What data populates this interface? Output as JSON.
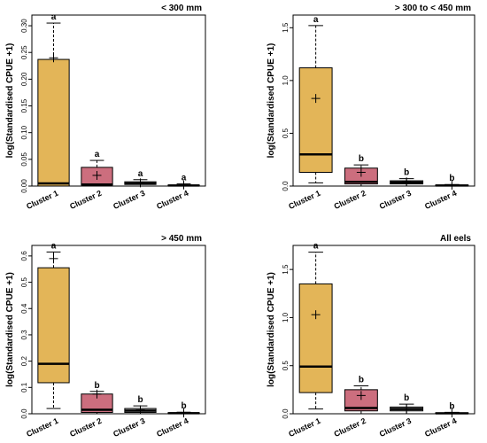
{
  "chart_data": [
    {
      "type": "box",
      "title": "< 300 mm",
      "ylabel": "log(Standardised CPUE +1)",
      "xlabel": "",
      "categories": [
        "Cluster 1",
        "Cluster 2",
        "Cluster 3",
        "Cluster 4"
      ],
      "ylim": [
        0,
        0.32
      ],
      "yticks": [
        "0.00",
        "0.05",
        "0.10",
        "0.15",
        "0.20",
        "0.25",
        "0.30"
      ],
      "boxes": [
        {
          "whisker_low": 0.0,
          "q1": 0.0,
          "median": 0.005,
          "q3": 0.237,
          "whisker_high": 0.305,
          "mean": 0.24,
          "letter": "a"
        },
        {
          "whisker_low": 0.0,
          "q1": 0.002,
          "median": 0.003,
          "q3": 0.035,
          "whisker_high": 0.048,
          "mean": 0.02,
          "letter": "a"
        },
        {
          "whisker_low": 0.0,
          "q1": 0.003,
          "median": 0.005,
          "q3": 0.008,
          "whisker_high": 0.012,
          "mean": 0.006,
          "letter": "a"
        },
        {
          "whisker_low": 0.0,
          "q1": 0.0,
          "median": 0.001,
          "q3": 0.002,
          "whisker_high": 0.004,
          "mean": 0.002,
          "letter": "a"
        }
      ],
      "colors": [
        "#e3b558",
        "#cc6e7e",
        "#b7b7b7",
        "#b7b7b7"
      ]
    },
    {
      "type": "box",
      "title": "> 300 to < 450 mm",
      "ylabel": "log(Standardised CPUE +1)",
      "xlabel": "",
      "categories": [
        "Cluster 1",
        "Cluster 2",
        "Cluster 3",
        "Cluster 4"
      ],
      "ylim": [
        0,
        1.62
      ],
      "yticks": [
        "0.0",
        "0.5",
        "1.0",
        "1.5"
      ],
      "boxes": [
        {
          "whisker_low": 0.03,
          "q1": 0.13,
          "median": 0.3,
          "q3": 1.12,
          "whisker_high": 1.52,
          "mean": 0.83,
          "letter": "a"
        },
        {
          "whisker_low": 0.0,
          "q1": 0.02,
          "median": 0.04,
          "q3": 0.17,
          "whisker_high": 0.2,
          "mean": 0.13,
          "letter": "b"
        },
        {
          "whisker_low": 0.0,
          "q1": 0.02,
          "median": 0.035,
          "q3": 0.05,
          "whisker_high": 0.07,
          "mean": 0.04,
          "letter": "b"
        },
        {
          "whisker_low": 0.0,
          "q1": 0.0,
          "median": 0.005,
          "q3": 0.01,
          "whisker_high": 0.015,
          "mean": 0.008,
          "letter": "b"
        }
      ],
      "colors": [
        "#e3b558",
        "#cc6e7e",
        "#b7b7b7",
        "#b7b7b7"
      ]
    },
    {
      "type": "box",
      "title": "> 450 mm",
      "ylabel": "log(Standardised CPUE +1)",
      "xlabel": "",
      "categories": [
        "Cluster 1",
        "Cluster 2",
        "Cluster 3",
        "Cluster 4"
      ],
      "ylim": [
        0,
        0.64
      ],
      "yticks": [
        "0.0",
        "0.1",
        "0.2",
        "0.3",
        "0.4",
        "0.5",
        "0.6"
      ],
      "boxes": [
        {
          "whisker_low": 0.02,
          "q1": 0.118,
          "median": 0.19,
          "q3": 0.555,
          "whisker_high": 0.615,
          "mean": 0.59,
          "letter": "a"
        },
        {
          "whisker_low": 0.0,
          "q1": 0.005,
          "median": 0.015,
          "q3": 0.075,
          "whisker_high": 0.085,
          "mean": 0.075,
          "letter": "b"
        },
        {
          "whisker_low": 0.0,
          "q1": 0.005,
          "median": 0.012,
          "q3": 0.02,
          "whisker_high": 0.03,
          "mean": 0.015,
          "letter": "b"
        },
        {
          "whisker_low": 0.0,
          "q1": 0.0,
          "median": 0.002,
          "q3": 0.004,
          "whisker_high": 0.006,
          "mean": 0.003,
          "letter": "b"
        }
      ],
      "colors": [
        "#e3b558",
        "#cc6e7e",
        "#b7b7b7",
        "#b7b7b7"
      ]
    },
    {
      "type": "box",
      "title": "All eels",
      "ylabel": "log(Standardised CPUE +1)",
      "xlabel": "",
      "categories": [
        "Cluster 1",
        "Cluster 2",
        "Cluster 3",
        "Cluster 4"
      ],
      "ylim": [
        0,
        1.75
      ],
      "yticks": [
        "0.0",
        "0.5",
        "1.0",
        "1.5"
      ],
      "boxes": [
        {
          "whisker_low": 0.05,
          "q1": 0.22,
          "median": 0.49,
          "q3": 1.35,
          "whisker_high": 1.68,
          "mean": 1.03,
          "letter": "a"
        },
        {
          "whisker_low": 0.0,
          "q1": 0.03,
          "median": 0.06,
          "q3": 0.25,
          "whisker_high": 0.29,
          "mean": 0.19,
          "letter": "b"
        },
        {
          "whisker_low": 0.0,
          "q1": 0.03,
          "median": 0.05,
          "q3": 0.07,
          "whisker_high": 0.1,
          "mean": 0.05,
          "letter": "b"
        },
        {
          "whisker_low": 0.0,
          "q1": 0.0,
          "median": 0.005,
          "q3": 0.01,
          "whisker_high": 0.015,
          "mean": 0.008,
          "letter": "b"
        }
      ],
      "colors": [
        "#e3b558",
        "#cc6e7e",
        "#b7b7b7",
        "#b7b7b7"
      ]
    }
  ]
}
